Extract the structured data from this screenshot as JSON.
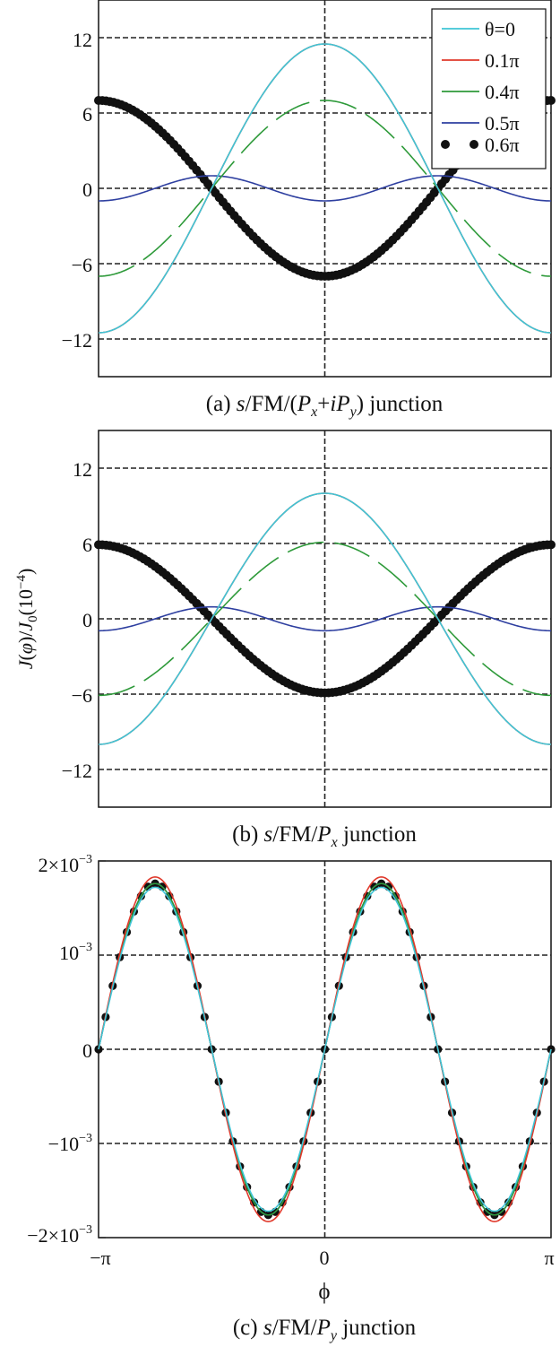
{
  "chart_data": [
    {
      "type": "line",
      "panel": "a",
      "caption": {
        "prefix": "(a) ",
        "a": "s",
        "b": "/FM/(",
        "c": "P",
        "d": "x",
        "e": "+",
        "f": "iP",
        "g": "y",
        "h": ")",
        "suffix": " junction"
      },
      "xlabel": "",
      "ylabel": "",
      "xlim": [
        -3.1416,
        3.1416
      ],
      "ylim": [
        -15,
        15
      ],
      "yticks": [
        12,
        6,
        0,
        -6,
        -12
      ],
      "ytick_labels": [
        "12",
        "6",
        "0",
        "−6",
        "−12"
      ],
      "grid": true,
      "legend": {
        "placement": "top-right",
        "entries": [
          {
            "label": "θ=0",
            "color": "#3ec5d6",
            "style": "solid"
          },
          {
            "label": "0.1π",
            "color": "#e0392b",
            "style": "solid"
          },
          {
            "label": "0.4π",
            "color": "#2e9a3a",
            "style": "dashed"
          },
          {
            "label": "0.5π",
            "color": "#2e3fa0",
            "style": "solid"
          },
          {
            "label": "0.6π",
            "color": "#111111",
            "style": "dots"
          }
        ]
      },
      "series": [
        {
          "name": "θ=0",
          "function": "a*cos(x)+b*cos(2x)",
          "a": 11.5,
          "b": 0
        },
        {
          "name": "0.1π",
          "function": "a*cos(x)+b*cos(2x)",
          "a": 11.5,
          "b": 0
        },
        {
          "name": "0.4π",
          "function": "a*cos(x)+b*cos(2x)",
          "a": 7.0,
          "b": 0
        },
        {
          "name": "0.5π",
          "function": "a*cos(x)+b*cos(2x)",
          "a": 0,
          "b": -1.0
        },
        {
          "name": "0.6π",
          "function": "a*cos(x)+b*cos(2x)",
          "a": -7.0,
          "b": 0
        }
      ]
    },
    {
      "type": "line",
      "panel": "b",
      "caption": {
        "prefix": "(b) ",
        "a": "s",
        "b": "/FM/",
        "c": "P",
        "d": "x",
        "suffix": " junction"
      },
      "ylabel": {
        "a": "J",
        "b": "(",
        "c": "φ",
        "d": ")/",
        "e": "J",
        "f": "0",
        "g": "(10",
        "h": "−4",
        "i": ")"
      },
      "xlim": [
        -3.1416,
        3.1416
      ],
      "ylim": [
        -15,
        15
      ],
      "yticks": [
        12,
        6,
        0,
        -6,
        -12
      ],
      "ytick_labels": [
        "12",
        "6",
        "0",
        "−6",
        "−12"
      ],
      "grid": true,
      "series": [
        {
          "name": "θ=0",
          "function": "a*cos(x)+b*cos(2x)",
          "a": 10.0,
          "b": 0
        },
        {
          "name": "0.1π",
          "function": "a*cos(x)+b*cos(2x)",
          "a": 10.0,
          "b": 0
        },
        {
          "name": "0.4π",
          "function": "a*cos(x)+b*cos(2x)",
          "a": 6.1,
          "b": 0
        },
        {
          "name": "0.5π",
          "function": "a*cos(x)+b*cos(2x)",
          "a": 0,
          "b": -0.95
        },
        {
          "name": "0.6π",
          "function": "a*cos(x)+b*cos(2x)",
          "a": -5.9,
          "b": 0
        }
      ]
    },
    {
      "type": "line",
      "panel": "c",
      "caption": {
        "prefix": "(c) ",
        "a": "s",
        "b": "/FM/",
        "c": "P",
        "d": "y",
        "suffix": " junction"
      },
      "xlabel": "ϕ",
      "xlim": [
        -3.1416,
        3.1416
      ],
      "xticks": [
        -3.1416,
        0,
        3.1416
      ],
      "xtick_labels": [
        "−π",
        "0",
        "π"
      ],
      "ylim": [
        -0.002,
        0.002
      ],
      "yticks": [
        0.002,
        0.001,
        0,
        -0.001,
        -0.002
      ],
      "ytick_labels": [
        {
          "base": "2×10",
          "exp": "−3"
        },
        {
          "base": "10",
          "exp": "−3"
        },
        {
          "base": "0",
          "exp": ""
        },
        {
          "base": "−10",
          "exp": "−3"
        },
        {
          "base": "−2×10",
          "exp": "−3"
        }
      ],
      "grid": true,
      "series": [
        {
          "name": "θ=0",
          "function": "amp*sin(2x)",
          "amp": 0.00172
        },
        {
          "name": "0.1π",
          "function": "amp*sin(2x)",
          "amp": 0.00183
        },
        {
          "name": "0.4π",
          "function": "amp*sin(2x)",
          "amp": 0.00176
        },
        {
          "name": "0.5π",
          "function": "amp*sin(2x)",
          "amp": 0.00176
        },
        {
          "name": "0.6π",
          "function": "amp*sin(2x)",
          "amp": 0.00176
        }
      ]
    }
  ]
}
